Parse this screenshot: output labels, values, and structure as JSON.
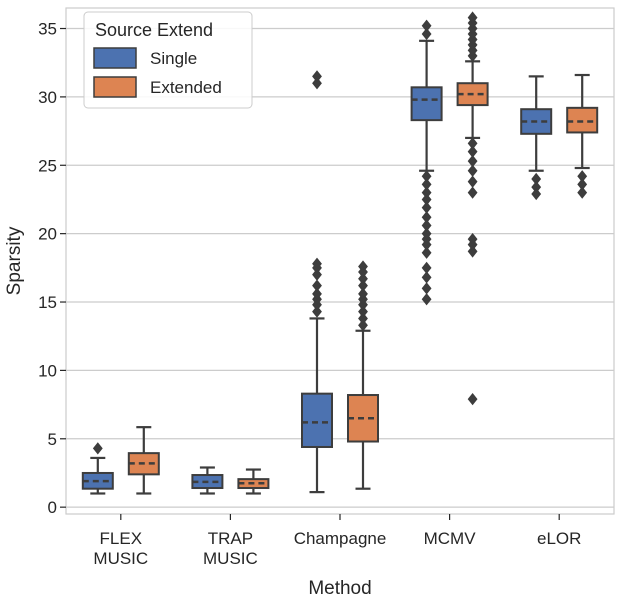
{
  "chart_data": {
    "type": "box",
    "title": "",
    "xlabel": "Method",
    "ylabel": "Sparsity",
    "ylim": [
      -0.5,
      36.5
    ],
    "yticks": [
      0,
      5,
      10,
      15,
      20,
      25,
      30,
      35
    ],
    "grid": "horizontal",
    "categories": [
      {
        "id": "flex-music",
        "lines": [
          "FLEX",
          "MUSIC"
        ]
      },
      {
        "id": "trap-music",
        "lines": [
          "TRAP",
          "MUSIC"
        ]
      },
      {
        "id": "champagne",
        "lines": [
          "Champagne"
        ]
      },
      {
        "id": "mcmv",
        "lines": [
          "MCMV"
        ]
      },
      {
        "id": "elor",
        "lines": [
          "eLOR"
        ]
      }
    ],
    "legend": {
      "title": "Source Extend",
      "position": "top-left"
    },
    "series": [
      {
        "name": "Single",
        "color": "#4c72b0",
        "boxes": [
          {
            "whisker_low": 1.0,
            "q1": 1.35,
            "median": 1.9,
            "q3": 2.5,
            "whisker_high": 3.6,
            "outliers": [
              4.3
            ]
          },
          {
            "whisker_low": 1.0,
            "q1": 1.4,
            "median": 1.85,
            "q3": 2.35,
            "whisker_high": 2.9,
            "outliers": []
          },
          {
            "whisker_low": 1.1,
            "q1": 4.4,
            "median": 6.2,
            "q3": 8.3,
            "whisker_high": 13.8,
            "outliers": [
              14.3,
              14.8,
              15.2,
              15.6,
              16.2,
              17.0,
              17.5,
              17.8,
              31.0,
              31.5
            ]
          },
          {
            "whisker_low": 24.6,
            "q1": 28.3,
            "median": 29.8,
            "q3": 30.7,
            "whisker_high": 34.1,
            "outliers": [
              15.2,
              16.0,
              16.8,
              17.5,
              18.6,
              19.2,
              19.6,
              20.0,
              20.6,
              21.2,
              21.9,
              22.5,
              23.0,
              23.6,
              24.2,
              34.6,
              35.2
            ]
          },
          {
            "whisker_low": 24.6,
            "q1": 27.3,
            "median": 28.2,
            "q3": 29.1,
            "whisker_high": 31.5,
            "outliers": [
              24.0,
              23.4,
              22.9
            ]
          }
        ]
      },
      {
        "name": "Extended",
        "color": "#dd8452",
        "boxes": [
          {
            "whisker_low": 1.0,
            "q1": 2.4,
            "median": 3.2,
            "q3": 3.95,
            "whisker_high": 5.85,
            "outliers": []
          },
          {
            "whisker_low": 1.0,
            "q1": 1.4,
            "median": 1.75,
            "q3": 2.05,
            "whisker_high": 2.75,
            "outliers": []
          },
          {
            "whisker_low": 1.35,
            "q1": 4.8,
            "median": 6.5,
            "q3": 8.2,
            "whisker_high": 12.9,
            "outliers": [
              13.3,
              13.8,
              14.3,
              14.8,
              15.2,
              15.6,
              16.2,
              16.7,
              17.2,
              17.6
            ]
          },
          {
            "whisker_low": 27.0,
            "q1": 29.4,
            "median": 30.2,
            "q3": 31.0,
            "whisker_high": 32.6,
            "outliers": [
              7.9,
              18.7,
              19.2,
              19.6,
              23.0,
              23.8,
              24.6,
              25.3,
              26.0,
              26.6,
              33.0,
              33.4,
              33.8,
              34.2,
              34.6,
              35.0,
              35.4,
              35.8
            ]
          },
          {
            "whisker_low": 24.8,
            "q1": 27.4,
            "median": 28.2,
            "q3": 29.2,
            "whisker_high": 31.6,
            "outliers": [
              24.2,
              23.6,
              23.0
            ]
          }
        ]
      }
    ]
  }
}
